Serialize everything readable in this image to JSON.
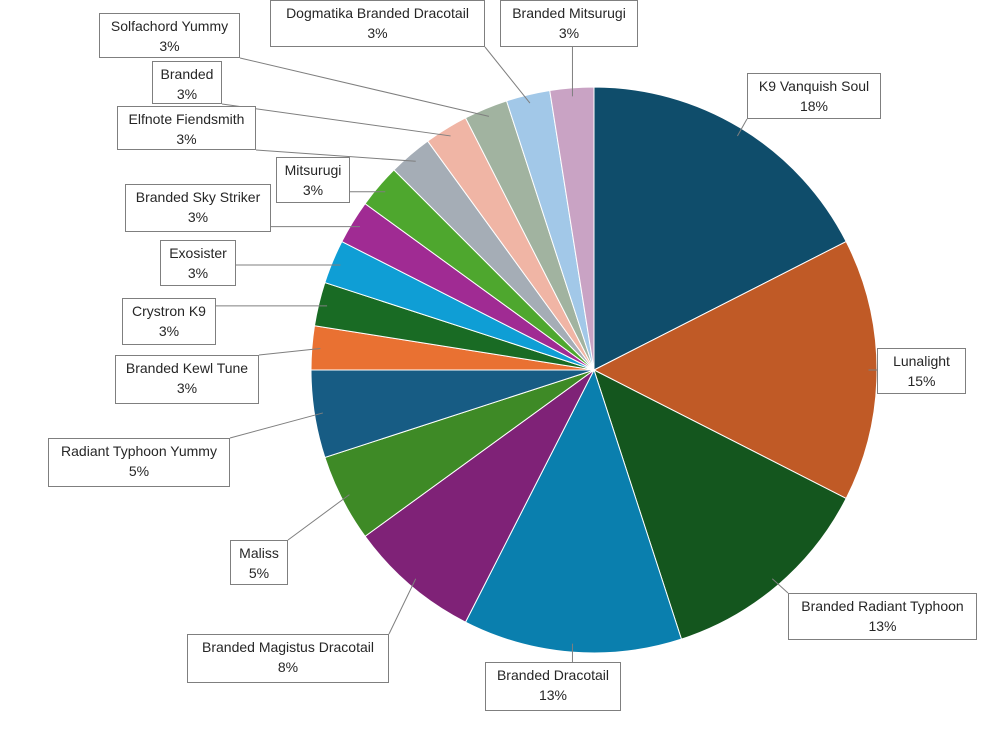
{
  "chart_data": {
    "type": "pie",
    "title": "",
    "start_angle": "top",
    "direction": "clockwise",
    "categories": [
      "K9 Vanquish Soul",
      "Lunalight",
      "Branded Radiant Typhoon",
      "Branded Dracotail",
      "Branded Magistus Dracotail",
      "Maliss",
      "Radiant Typhoon Yummy",
      "Branded Kewl Tune",
      "Crystron K9",
      "Exosister",
      "Branded Sky Striker",
      "Mitsurugi",
      "Elfnote Fiendsmith",
      "Branded",
      "Solfachord Yummy",
      "Dogmatika Branded Dracotail",
      "Branded Mitsurugi"
    ],
    "values": [
      7,
      6,
      5,
      5,
      3,
      2,
      2,
      1,
      1,
      1,
      1,
      1,
      1,
      1,
      1,
      1,
      1
    ],
    "percent_labels": [
      "18%",
      "15%",
      "13%",
      "13%",
      "8%",
      "5%",
      "5%",
      "3%",
      "3%",
      "3%",
      "3%",
      "3%",
      "3%",
      "3%",
      "3%",
      "3%",
      "3%"
    ],
    "colors": [
      "#0f4d6b",
      "#c05a26",
      "#14561e",
      "#0a7fae",
      "#7f2277",
      "#3e8a26",
      "#175c84",
      "#e97132",
      "#196b24",
      "#0f9ed5",
      "#a02b93",
      "#4ea72e",
      "#a5adb6",
      "#f0b5a5",
      "#a1b3a0",
      "#a2c8e8",
      "#c9a3c4"
    ],
    "legend": "none"
  }
}
